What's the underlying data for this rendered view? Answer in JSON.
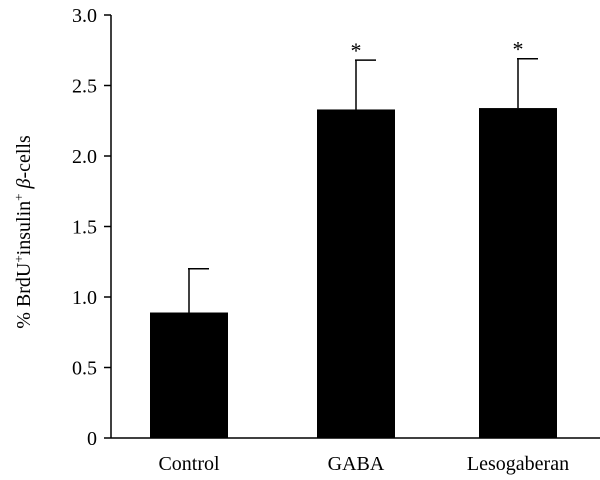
{
  "chart_data": {
    "type": "bar",
    "categories": [
      "Control",
      "GABA",
      "Lesogaberan"
    ],
    "values": [
      0.89,
      2.33,
      2.34
    ],
    "errors": [
      0.31,
      0.35,
      0.35
    ],
    "significance": [
      "",
      "*",
      "*"
    ],
    "ylabel": {
      "prefix": "% BrdU",
      "sup1": "+",
      "middle": "insulin",
      "sup2": "+",
      "greek": " β",
      "suffix": "-cells"
    },
    "ylim": [
      0,
      3.0
    ],
    "yticks": [
      "0",
      "0.5",
      "1.0",
      "1.5",
      "2.0",
      "2.5",
      "3.0"
    ],
    "bar_color": "#000000",
    "grid": false,
    "legend": "none"
  }
}
